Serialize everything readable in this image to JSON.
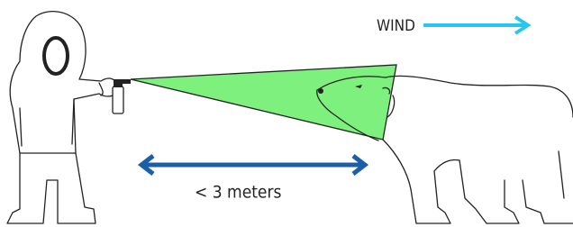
{
  "labels": {
    "wind": "WIND",
    "distance": "< 3 meters"
  }
}
